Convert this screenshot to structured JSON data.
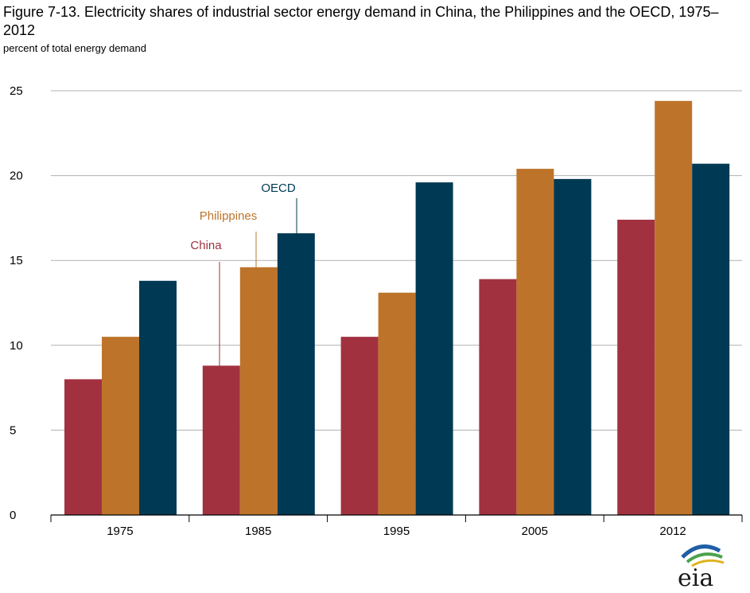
{
  "title": "Figure 7-13. Electricity shares of industrial sector energy demand in China, the Philippines and the OECD, 1975–2012",
  "subtitle": "percent of total energy demand",
  "logo": "eia",
  "colors": {
    "China": "#a23140",
    "Philippines": "#bd742a",
    "OECD": "#003953",
    "grid": "#b0b0b0"
  },
  "chart_data": {
    "type": "bar",
    "categories": [
      "1975",
      "1985",
      "1995",
      "2005",
      "2012"
    ],
    "series": [
      {
        "name": "China",
        "values": [
          8.0,
          8.8,
          10.5,
          13.9,
          17.4
        ]
      },
      {
        "name": "Philippines",
        "values": [
          10.5,
          14.6,
          13.1,
          20.4,
          24.4
        ]
      },
      {
        "name": "OECD",
        "values": [
          13.8,
          16.6,
          19.6,
          19.8,
          20.7
        ]
      }
    ],
    "ylim": [
      0,
      25
    ],
    "yticks": [
      "0",
      "5",
      "10",
      "15",
      "20",
      "25"
    ],
    "grid": true,
    "legend": "annotation labels with leader lines at 1985",
    "xlabel": "",
    "ylabel": ""
  }
}
